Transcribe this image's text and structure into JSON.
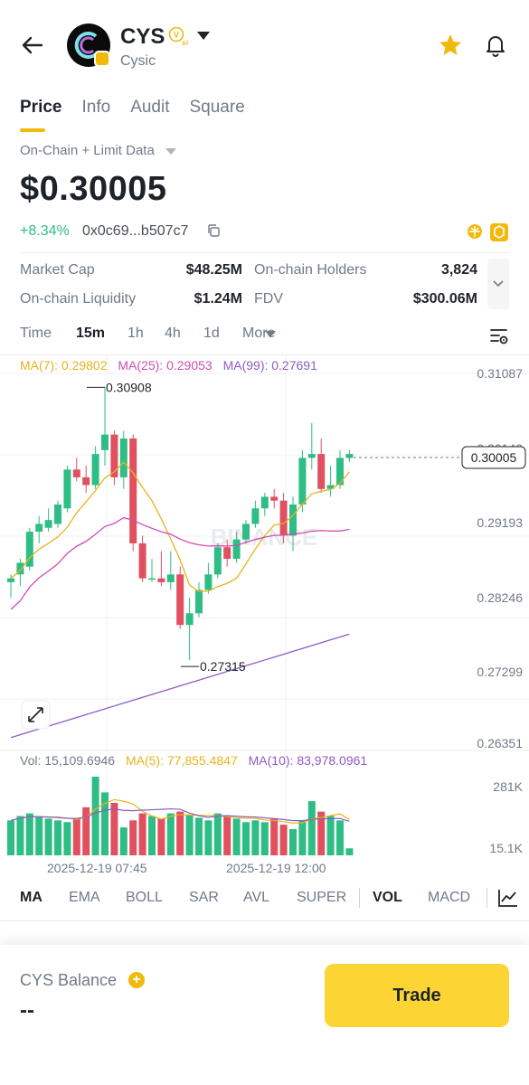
{
  "header": {
    "token_symbol": "CYS",
    "token_name": "Cysic",
    "verified_multiplier": "x4",
    "icons": [
      "back-arrow-icon",
      "star-icon",
      "bell-icon"
    ],
    "accent_color": "#f0b90b"
  },
  "tabs": [
    {
      "label": "Price",
      "active": true
    },
    {
      "label": "Info",
      "active": false
    },
    {
      "label": "Audit",
      "active": false
    },
    {
      "label": "Square",
      "active": false
    }
  ],
  "data_source": "On-Chain + Limit Data",
  "price": "$0.30005",
  "change": "+8.34%",
  "address": "0x0c69...b507c7",
  "stats": {
    "market_cap_label": "Market Cap",
    "market_cap_value": "$48.25M",
    "holders_label": "On-chain Holders",
    "holders_value": "3,824",
    "liquidity_label": "On-chain Liquidity",
    "liquidity_value": "$1.24M",
    "fdv_label": "FDV",
    "fdv_value": "$300.06M"
  },
  "timebar": {
    "label": "Time",
    "options": [
      "15m",
      "1h",
      "4h",
      "1d",
      "More"
    ],
    "selected": "15m"
  },
  "ma": {
    "ma7": "MA(7): 0.29802",
    "ma25": "MA(25): 0.29053",
    "ma99": "MA(99): 0.27691"
  },
  "price_axis": [
    "0.31087",
    "0.30140",
    "0.29193",
    "0.28246",
    "0.27299",
    "0.26351"
  ],
  "current_price_tag": "0.30005",
  "high_label": "0.30908",
  "low_label": "0.27315",
  "watermark": "BINANCE",
  "volume": {
    "vol": "Vol: 15,109.6946",
    "ma5": "MA(5): 77,855.4847",
    "ma10": "MA(10): 83,978.0961",
    "axis_top": "281K",
    "axis_bottom": "15.1K"
  },
  "time_labels": [
    "2025-12-19 07:45",
    "2025-12-19 12:00"
  ],
  "indicators": [
    "MA",
    "EMA",
    "BOLL",
    "SAR",
    "AVL",
    "SUPER",
    "VOL",
    "MACD"
  ],
  "footer": {
    "balance_label": "CYS Balance",
    "balance_value": "--",
    "trade_label": "Trade"
  },
  "chart_data": {
    "type": "candlestick",
    "up_color": "#2ebd85",
    "down_color": "#e0505f",
    "ylim": [
      0.2635,
      0.3109
    ],
    "candles": [
      [
        0.284,
        0.285,
        0.282,
        0.2845
      ],
      [
        0.285,
        0.287,
        0.2835,
        0.2865
      ],
      [
        0.286,
        0.291,
        0.2855,
        0.2905
      ],
      [
        0.2905,
        0.2925,
        0.289,
        0.2915
      ],
      [
        0.291,
        0.2935,
        0.2905,
        0.292
      ],
      [
        0.2915,
        0.2945,
        0.291,
        0.294
      ],
      [
        0.2935,
        0.299,
        0.293,
        0.2985
      ],
      [
        0.2985,
        0.3,
        0.297,
        0.2975
      ],
      [
        0.2975,
        0.299,
        0.2955,
        0.2965
      ],
      [
        0.2965,
        0.3015,
        0.296,
        0.3005
      ],
      [
        0.301,
        0.3091,
        0.299,
        0.303
      ],
      [
        0.303,
        0.3035,
        0.2965,
        0.2975
      ],
      [
        0.2975,
        0.3035,
        0.296,
        0.3025
      ],
      [
        0.3025,
        0.303,
        0.288,
        0.289
      ],
      [
        0.289,
        0.29,
        0.284,
        0.2845
      ],
      [
        0.2845,
        0.287,
        0.284,
        0.2845
      ],
      [
        0.2845,
        0.288,
        0.2835,
        0.284
      ],
      [
        0.284,
        0.288,
        0.283,
        0.285
      ],
      [
        0.285,
        0.286,
        0.278,
        0.2785
      ],
      [
        0.2785,
        0.282,
        0.274,
        0.28
      ],
      [
        0.28,
        0.284,
        0.2795,
        0.283
      ],
      [
        0.283,
        0.2865,
        0.2825,
        0.285
      ],
      [
        0.285,
        0.289,
        0.2845,
        0.2885
      ],
      [
        0.2885,
        0.2895,
        0.286,
        0.287
      ],
      [
        0.287,
        0.2905,
        0.2865,
        0.2895
      ],
      [
        0.2895,
        0.292,
        0.289,
        0.2915
      ],
      [
        0.2915,
        0.2945,
        0.291,
        0.2935
      ],
      [
        0.2935,
        0.2955,
        0.2925,
        0.295
      ],
      [
        0.295,
        0.296,
        0.2935,
        0.2945
      ],
      [
        0.2945,
        0.2955,
        0.289,
        0.29
      ],
      [
        0.29,
        0.295,
        0.288,
        0.294
      ],
      [
        0.294,
        0.301,
        0.293,
        0.3
      ],
      [
        0.3,
        0.3045,
        0.2985,
        0.3005
      ],
      [
        0.3005,
        0.3025,
        0.2955,
        0.296
      ],
      [
        0.296,
        0.299,
        0.295,
        0.2965
      ],
      [
        0.2965,
        0.301,
        0.296,
        0.3
      ],
      [
        0.3,
        0.301,
        0.2995,
        0.3005
      ]
    ],
    "volume_values": [
      40,
      45,
      48,
      44,
      42,
      40,
      38,
      42,
      55,
      90,
      72,
      60,
      32,
      40,
      48,
      45,
      42,
      48,
      50,
      46,
      43,
      40,
      48,
      44,
      42,
      38,
      40,
      38,
      42,
      35,
      30,
      40,
      62,
      50,
      45,
      40,
      8
    ],
    "volume_ylim": [
      0,
      120
    ]
  }
}
